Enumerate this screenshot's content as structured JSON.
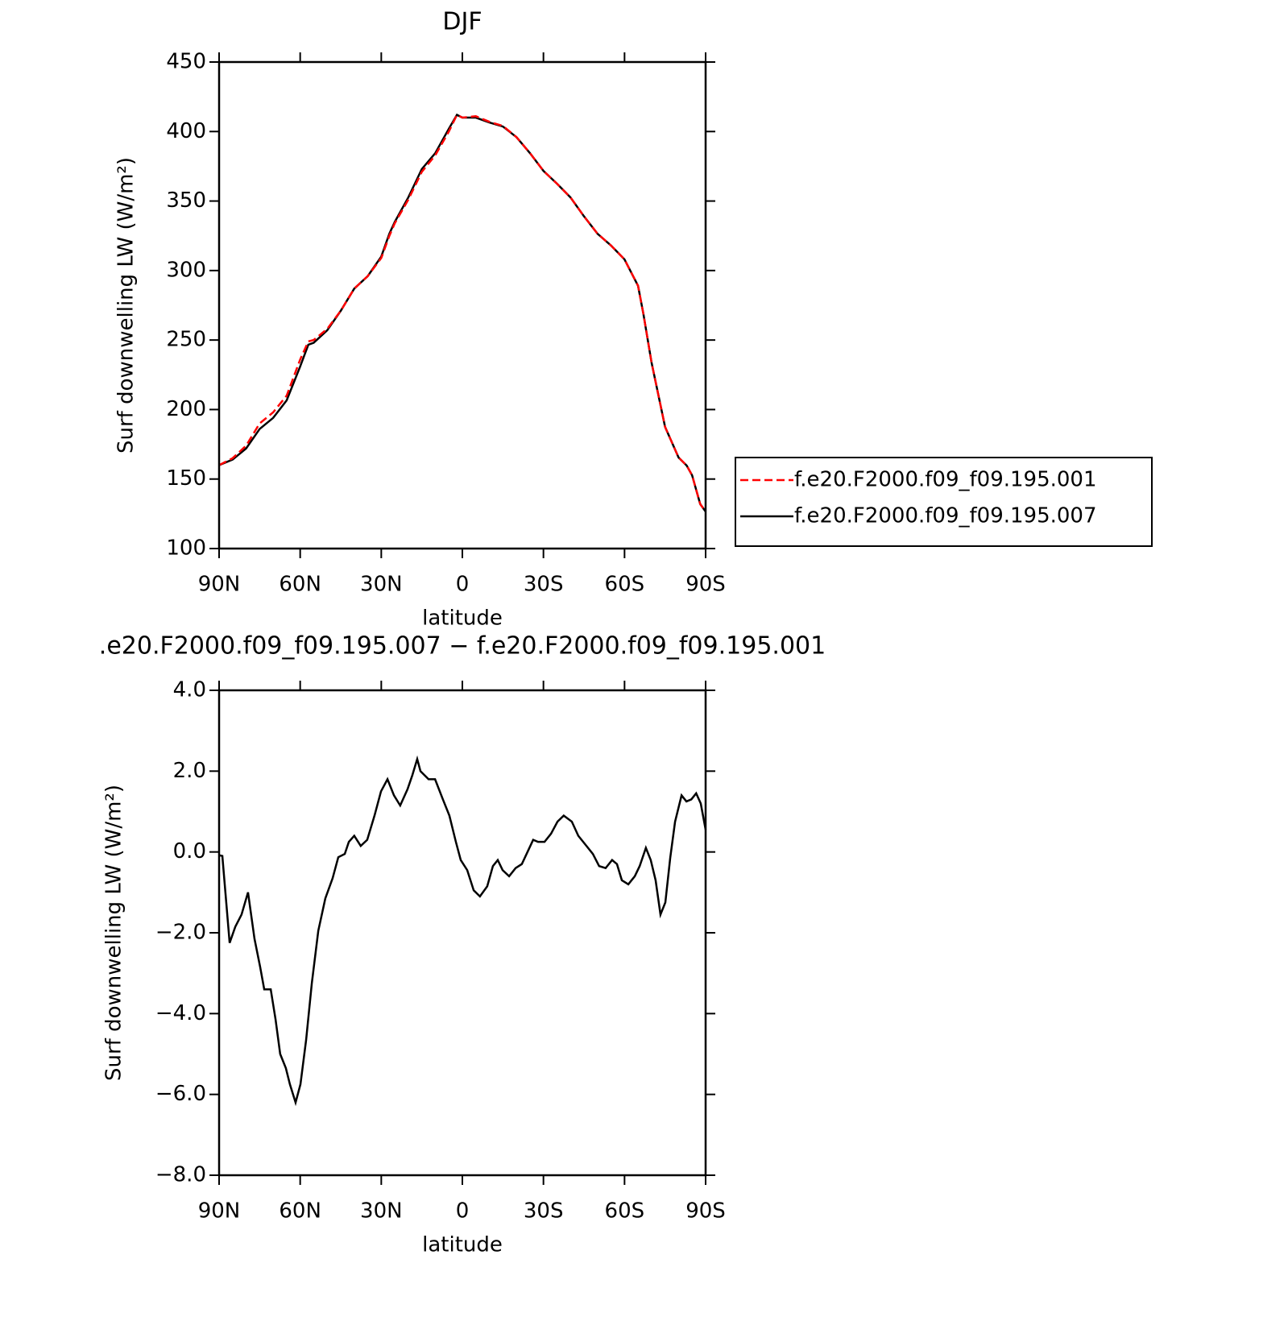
{
  "chart_data": [
    {
      "type": "line",
      "title": "DJF",
      "xlabel": "latitude",
      "ylabel": "Surf downwelling LW (W/m²)",
      "xlim": [
        90,
        -90
      ],
      "ylim": [
        100,
        450
      ],
      "xticks": [
        {
          "value": 90,
          "label": "90N"
        },
        {
          "value": 60,
          "label": "60N"
        },
        {
          "value": 30,
          "label": "30N"
        },
        0,
        {
          "value": -30,
          "label": "30S"
        },
        {
          "value": -60,
          "label": "60S"
        },
        {
          "value": -90,
          "label": "90S"
        }
      ],
      "yticks": [
        100,
        150,
        200,
        250,
        300,
        350,
        400,
        450
      ],
      "legend": "right",
      "x": [
        90,
        85,
        80,
        75,
        70,
        65,
        60,
        57,
        55,
        50,
        45,
        40,
        35,
        30,
        27,
        25,
        20,
        15,
        10,
        5,
        2,
        0,
        -5,
        -10,
        -15,
        -20,
        -25,
        -30,
        -35,
        -40,
        -45,
        -50,
        -55,
        -60,
        -65,
        -67,
        -70,
        -75,
        -80,
        -83,
        -85,
        -88,
        -90
      ],
      "series": [
        {
          "name": "f.e20.F2000.f09_f09.195.001",
          "color": "#ff0000",
          "dashed": true,
          "values": [
            160,
            165,
            174,
            190,
            198,
            210,
            236,
            249,
            250,
            258,
            271,
            287,
            296,
            309,
            325,
            334,
            351,
            371,
            383,
            400,
            412,
            410,
            411,
            407,
            404,
            396,
            384.5,
            371.7,
            362.5,
            352.6,
            339,
            326.5,
            318,
            308,
            289,
            268.6,
            233.8,
            187.5,
            165.5,
            159.7,
            152.7,
            132,
            126.6
          ]
        },
        {
          "name": "f.e20.F2000.f09_f09.195.007",
          "color": "#000000",
          "dashed": false,
          "values": [
            160,
            164,
            172,
            186,
            194,
            206.6,
            231,
            246.6,
            248,
            257,
            271,
            287,
            296,
            310,
            326.5,
            335,
            352.6,
            373,
            384.5,
            402,
            412,
            410,
            410,
            406.5,
            403.6,
            396,
            384.5,
            371.7,
            362.5,
            352.6,
            339,
            326.5,
            318,
            308,
            289,
            268.6,
            233.8,
            187.5,
            165.5,
            159.7,
            152.7,
            132,
            126.6
          ]
        }
      ]
    },
    {
      "type": "line",
      "title": ".e20.F2000.f09_f09.195.007 − f.e20.F2000.f09_f09.195.001",
      "xlabel": "latitude",
      "ylabel": "Surf downwelling LW (W/m²)",
      "xlim": [
        90,
        -90
      ],
      "ylim": [
        -8,
        4
      ],
      "xticks": [
        {
          "value": 90,
          "label": "90N"
        },
        {
          "value": 60,
          "label": "60N"
        },
        {
          "value": 30,
          "label": "30N"
        },
        0,
        {
          "value": -30,
          "label": "30S"
        },
        {
          "value": -60,
          "label": "60S"
        },
        {
          "value": -90,
          "label": "90S"
        }
      ],
      "yticks": [
        {
          "value": -8,
          "label": "−8.0"
        },
        {
          "value": -6,
          "label": "−6.0"
        },
        {
          "value": -4,
          "label": "−4.0"
        },
        {
          "value": -2,
          "label": "−2.0"
        },
        {
          "value": 0,
          "label": "0.0"
        },
        {
          "value": 2,
          "label": "2.0"
        },
        {
          "value": 4,
          "label": "4.0"
        }
      ],
      "x": [
        90,
        88.8,
        86.1,
        84.0,
        81.7,
        79.3,
        76.9,
        74.8,
        73.3,
        70.9,
        69.1,
        67.4,
        65.3,
        63.8,
        61.7,
        59.9,
        57.8,
        55.7,
        53.3,
        50.7,
        48.0,
        45.9,
        43.5,
        42.0,
        40.0,
        37.6,
        35.2,
        32.5,
        30.1,
        27.7,
        25.3,
        23.0,
        20.3,
        18.5,
        16.7,
        15.5,
        12.5,
        10.1,
        7.2,
        4.8,
        2.4,
        0.6,
        -1.8,
        -4.2,
        -6.5,
        -9.2,
        -11.3,
        -13.1,
        -14.9,
        -17.3,
        -19.7,
        -22.0,
        -24.1,
        -26.2,
        -28.0,
        -30.4,
        -32.8,
        -35.2,
        -37.5,
        -40.5,
        -42.9,
        -45.9,
        -48.3,
        -50.6,
        -53.0,
        -55.4,
        -57.2,
        -59.0,
        -61.4,
        -63.8,
        -65.6,
        -67.9,
        -69.7,
        -71.5,
        -73.3,
        -75.1,
        -76.9,
        -78.7,
        -81.1,
        -82.9,
        -84.7,
        -86.5,
        -88.2,
        -90
      ],
      "series": [
        {
          "color": "#000000",
          "dashed": false,
          "values": [
            -0.08,
            -0.1,
            -2.25,
            -1.85,
            -1.55,
            -1.0,
            -2.15,
            -2.85,
            -3.4,
            -3.4,
            -4.15,
            -5.0,
            -5.35,
            -5.75,
            -6.2,
            -5.75,
            -4.65,
            -3.25,
            -1.95,
            -1.15,
            -0.65,
            -0.13,
            -0.05,
            0.25,
            0.4,
            0.15,
            0.3,
            0.9,
            1.5,
            1.8,
            1.4,
            1.15,
            1.55,
            1.9,
            2.3,
            2.0,
            1.8,
            1.8,
            1.3,
            0.9,
            0.25,
            -0.2,
            -0.45,
            -0.95,
            -1.1,
            -0.85,
            -0.35,
            -0.2,
            -0.45,
            -0.6,
            -0.4,
            -0.3,
            0.0,
            0.3,
            0.25,
            0.25,
            0.45,
            0.75,
            0.9,
            0.75,
            0.4,
            0.15,
            -0.05,
            -0.35,
            -0.4,
            -0.2,
            -0.3,
            -0.7,
            -0.8,
            -0.6,
            -0.35,
            0.1,
            -0.2,
            -0.7,
            -1.55,
            -1.25,
            -0.15,
            0.75,
            1.4,
            1.25,
            1.3,
            1.45,
            1.2,
            0.55
          ]
        }
      ]
    }
  ]
}
